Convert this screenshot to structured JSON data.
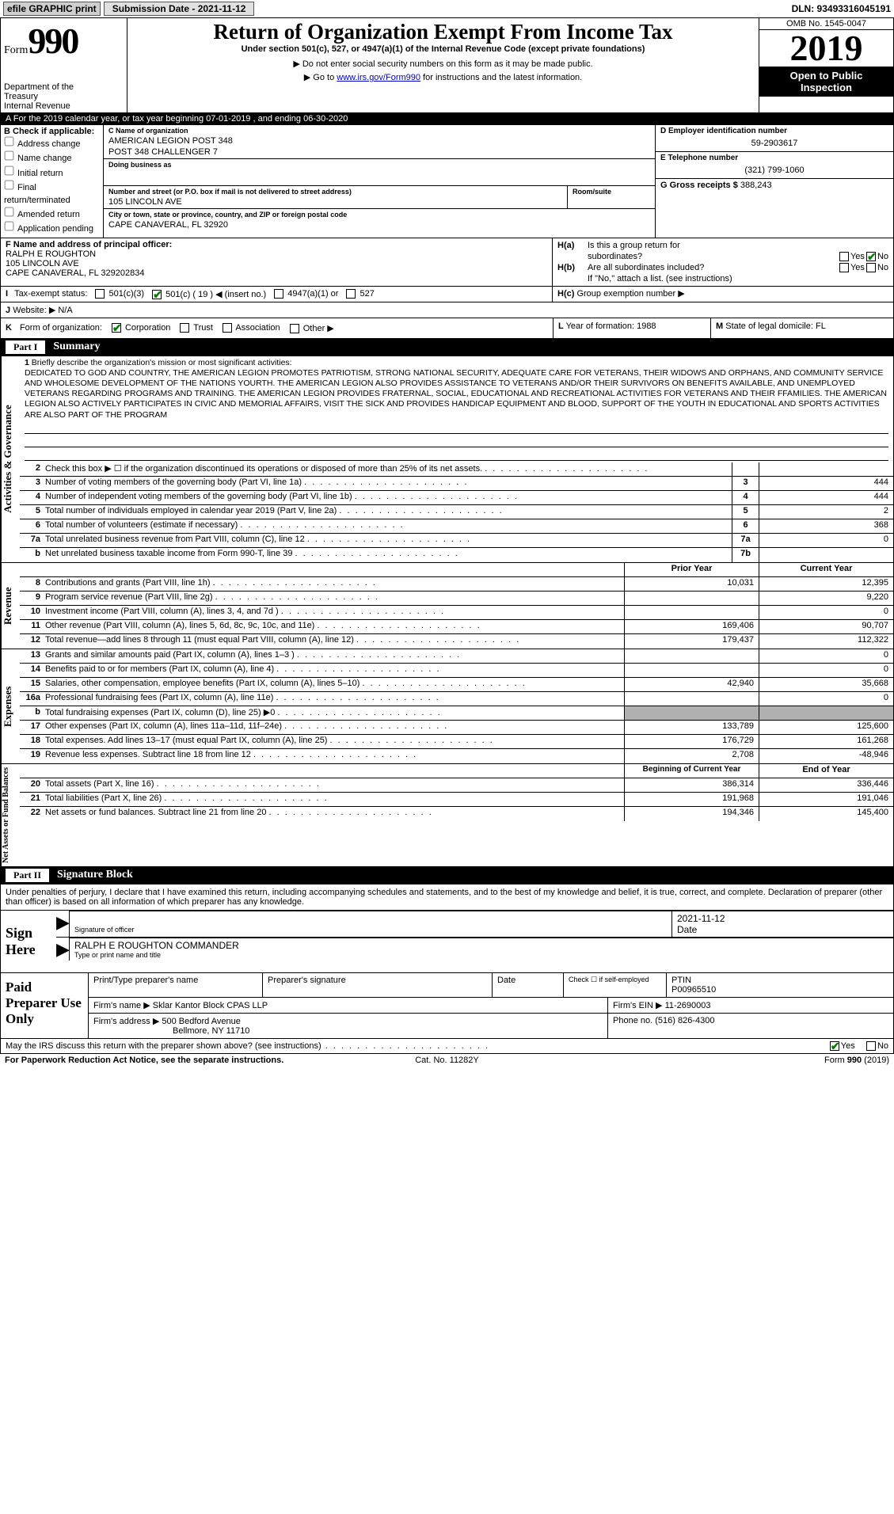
{
  "topbar": {
    "efile": "efile GRAPHIC print",
    "submit_label": "Submission Date - 2021-11-12",
    "dln": "DLN: 93493316045191"
  },
  "header": {
    "form_word": "Form",
    "form_num": "990",
    "dept1": "Department of the",
    "dept2": "Treasury",
    "dept3": "Internal Revenue",
    "title": "Return of Organization Exempt From Income Tax",
    "sub": "Under section 501(c), 527, or 4947(a)(1) of the Internal Revenue Code (except private foundations)",
    "note1": "▶ Do not enter social security numbers on this form as it may be made public.",
    "note2_pre": "▶ Go to ",
    "note2_link": "www.irs.gov/Form990",
    "note2_post": " for instructions and the latest information.",
    "omb": "OMB No. 1545-0047",
    "year": "2019",
    "open1": "Open to Public",
    "open2": "Inspection"
  },
  "a_row": "A For the 2019 calendar year, or tax year beginning 07-01-2019   , and ending 06-30-2020",
  "section_b": {
    "title": "B Check if applicable:",
    "opts": [
      "Address change",
      "Name change",
      "Initial return",
      "Final return/terminated",
      "Amended return",
      "Application pending"
    ]
  },
  "section_c": {
    "name_lab": "C Name of organization",
    "name1": "AMERICAN LEGION POST 348",
    "name2": "POST 348 CHALLENGER 7",
    "dba_lab": "Doing business as",
    "dba": "",
    "addr_lab": "Number and street (or P.O. box if mail is not delivered to street address)",
    "addr": "105 LINCOLN AVE",
    "room_lab": "Room/suite",
    "room": "",
    "city_lab": "City or town, state or province, country, and ZIP or foreign postal code",
    "city": "CAPE CANAVERAL, FL  32920"
  },
  "section_d": {
    "lab": "D Employer identification number",
    "val": "59-2903617"
  },
  "section_e": {
    "lab": "E Telephone number",
    "val": "(321) 799-1060"
  },
  "section_g": {
    "lab": "G Gross receipts $",
    "val": "388,243"
  },
  "section_f": {
    "lab": "F  Name and address of principal officer:",
    "name": "RALPH E ROUGHTON",
    "addr1": "105 LINCOLN AVE",
    "addr2": "CAPE CANAVERAL, FL  329202834"
  },
  "section_h": {
    "ha_lab": "H(a)",
    "ha_text": "Is this a group return for",
    "ha_text2": "subordinates?",
    "ha_yes": "Yes",
    "ha_no": "No",
    "hb_lab": "H(b)",
    "hb_text": "Are all subordinates included?",
    "hb_note": "If \"No,\" attach a list. (see instructions)",
    "hc_lab": "H(c)",
    "hc_text": "Group exemption number ▶"
  },
  "section_i": {
    "lab": "I",
    "text": "Tax-exempt status:",
    "o1": "501(c)(3)",
    "o2": "501(c) ( 19 ) ◀ (insert no.)",
    "o3": "4947(a)(1) or",
    "o4": "527"
  },
  "section_j": {
    "lab": "J",
    "text": "Website: ▶",
    "val": "N/A"
  },
  "section_k": {
    "lab": "K",
    "text": "Form of organization:",
    "o1": "Corporation",
    "o2": "Trust",
    "o3": "Association",
    "o4": "Other ▶"
  },
  "section_l": {
    "lab": "L",
    "text": "Year of formation:",
    "val": "1988"
  },
  "section_m": {
    "lab": "M",
    "text": "State of legal domicile:",
    "val": "FL"
  },
  "part1": {
    "num": "Part I",
    "title": "Summary"
  },
  "mission": {
    "num": "1",
    "intro": "Briefly describe the organization's mission or most significant activities:",
    "text": "DEDICATED TO GOD AND COUNTRY, THE AMERICAN LEGION PROMOTES PATRIOTISM, STRONG NATIONAL SECURITY, ADEQUATE CARE FOR VETERANS, THEIR WIDOWS AND ORPHANS, AND COMMUNITY SERVICE AND WHOLESOME DEVELOPMENT OF THE NATIONS YOURTH. THE AMERICAN LEGION ALSO PROVIDES ASSISTANCE TO VETERANS AND/OR THEIR SURVIVORS ON BENEFITS AVAILABLE, AND UNEMPLOYED VETERANS REGARDING PROGRAMS AND TRAINING. THE AMERICAN LEGION PROVIDES FRATERNAL, SOCIAL, EDUCATIONAL AND RECREATIONAL ACTIVITIES FOR VETERANS AND THEIR FFAMILIES. THE AMERICAN LEGION ALSO ACTIVELY PARTICIPATES IN CIVIC AND MEMORIAL AFFAIRS, VISIT THE SICK AND PROVIDES HANDICAP EQUIPMENT AND BLOOD, SUPPORT OF THE YOUTH IN EDUCATIONAL AND SPORTS ACTIVITIES ARE ALSO PART OF THE PROGRAM"
  },
  "gov_lines": [
    {
      "n": "2",
      "t": "Check this box ▶ ☐ if the organization discontinued its operations or disposed of more than 25% of its net assets.",
      "box": "",
      "v": ""
    },
    {
      "n": "3",
      "t": "Number of voting members of the governing body (Part VI, line 1a)",
      "box": "3",
      "v": "444"
    },
    {
      "n": "4",
      "t": "Number of independent voting members of the governing body (Part VI, line 1b)",
      "box": "4",
      "v": "444"
    },
    {
      "n": "5",
      "t": "Total number of individuals employed in calendar year 2019 (Part V, line 2a)",
      "box": "5",
      "v": "2"
    },
    {
      "n": "6",
      "t": "Total number of volunteers (estimate if necessary)",
      "box": "6",
      "v": "368"
    },
    {
      "n": "7a",
      "t": "Total unrelated business revenue from Part VIII, column (C), line 12",
      "box": "7a",
      "v": "0"
    },
    {
      "n": "b",
      "t": "Net unrelated business taxable income from Form 990-T, line 39",
      "box": "7b",
      "v": ""
    }
  ],
  "rev_hdr": {
    "py": "Prior Year",
    "cy": "Current Year"
  },
  "rev_lines": [
    {
      "n": "8",
      "t": "Contributions and grants (Part VIII, line 1h)",
      "py": "10,031",
      "cy": "12,395"
    },
    {
      "n": "9",
      "t": "Program service revenue (Part VIII, line 2g)",
      "py": "",
      "cy": "9,220"
    },
    {
      "n": "10",
      "t": "Investment income (Part VIII, column (A), lines 3, 4, and 7d )",
      "py": "",
      "cy": "0"
    },
    {
      "n": "11",
      "t": "Other revenue (Part VIII, column (A), lines 5, 6d, 8c, 9c, 10c, and 11e)",
      "py": "169,406",
      "cy": "90,707"
    },
    {
      "n": "12",
      "t": "Total revenue—add lines 8 through 11 (must equal Part VIII, column (A), line 12)",
      "py": "179,437",
      "cy": "112,322"
    }
  ],
  "exp_lines": [
    {
      "n": "13",
      "t": "Grants and similar amounts paid (Part IX, column (A), lines 1–3 )",
      "py": "",
      "cy": "0"
    },
    {
      "n": "14",
      "t": "Benefits paid to or for members (Part IX, column (A), line 4)",
      "py": "",
      "cy": "0"
    },
    {
      "n": "15",
      "t": "Salaries, other compensation, employee benefits (Part IX, column (A), lines 5–10)",
      "py": "42,940",
      "cy": "35,668"
    },
    {
      "n": "16a",
      "t": "Professional fundraising fees (Part IX, column (A), line 11e)",
      "py": "",
      "cy": "0"
    },
    {
      "n": "b",
      "t": "Total fundraising expenses (Part IX, column (D), line 25) ▶0",
      "py": "shade",
      "cy": "shade"
    },
    {
      "n": "17",
      "t": "Other expenses (Part IX, column (A), lines 11a–11d, 11f–24e)",
      "py": "133,789",
      "cy": "125,600"
    },
    {
      "n": "18",
      "t": "Total expenses. Add lines 13–17 (must equal Part IX, column (A), line 25)",
      "py": "176,729",
      "cy": "161,268"
    },
    {
      "n": "19",
      "t": "Revenue less expenses. Subtract line 18 from line 12",
      "py": "2,708",
      "cy": "-48,946"
    }
  ],
  "net_hdr": {
    "py": "Beginning of Current Year",
    "cy": "End of Year"
  },
  "net_lines": [
    {
      "n": "20",
      "t": "Total assets (Part X, line 16)",
      "py": "386,314",
      "cy": "336,446"
    },
    {
      "n": "21",
      "t": "Total liabilities (Part X, line 26)",
      "py": "191,968",
      "cy": "191,046"
    },
    {
      "n": "22",
      "t": "Net assets or fund balances. Subtract line 21 from line 20",
      "py": "194,346",
      "cy": "145,400"
    }
  ],
  "side_tabs": {
    "gov": "Activities & Governance",
    "rev": "Revenue",
    "exp": "Expenses",
    "net": "Net Assets or Fund Balances"
  },
  "part2": {
    "num": "Part II",
    "title": "Signature Block"
  },
  "sig_intro": "Under penalties of perjury, I declare that I have examined this return, including accompanying schedules and statements, and to the best of my knowledge and belief, it is true, correct, and complete. Declaration of preparer (other than officer) is based on all information of which preparer has any knowledge.",
  "sign": {
    "here": "Sign Here",
    "sig_lab": "Signature of officer",
    "date": "2021-11-12",
    "date_lab": "Date",
    "name": "RALPH E ROUGHTON COMMANDER",
    "name_lab": "Type or print name and title"
  },
  "paid": {
    "title": "Paid Preparer Use Only",
    "h1": "Print/Type preparer's name",
    "h2": "Preparer's signature",
    "h3": "Date",
    "h4_pre": "Check ☐ if self-employed",
    "h5": "PTIN",
    "ptin": "P00965510",
    "firm_lab": "Firm's name    ▶",
    "firm": "Sklar Kantor Block CPAS LLP",
    "ein_lab": "Firm's EIN ▶",
    "ein": "11-2690003",
    "addr_lab": "Firm's address ▶",
    "addr1": "500 Bedford Avenue",
    "addr2": "Bellmore, NY  11710",
    "phone_lab": "Phone no.",
    "phone": "(516) 826-4300"
  },
  "discuss": {
    "q": "May the IRS discuss this return with the preparer shown above? (see instructions)",
    "yes": "Yes",
    "no": "No"
  },
  "footer": {
    "l": "For Paperwork Reduction Act Notice, see the separate instructions.",
    "c": "Cat. No. 11282Y",
    "r": "Form 990 (2019)"
  }
}
